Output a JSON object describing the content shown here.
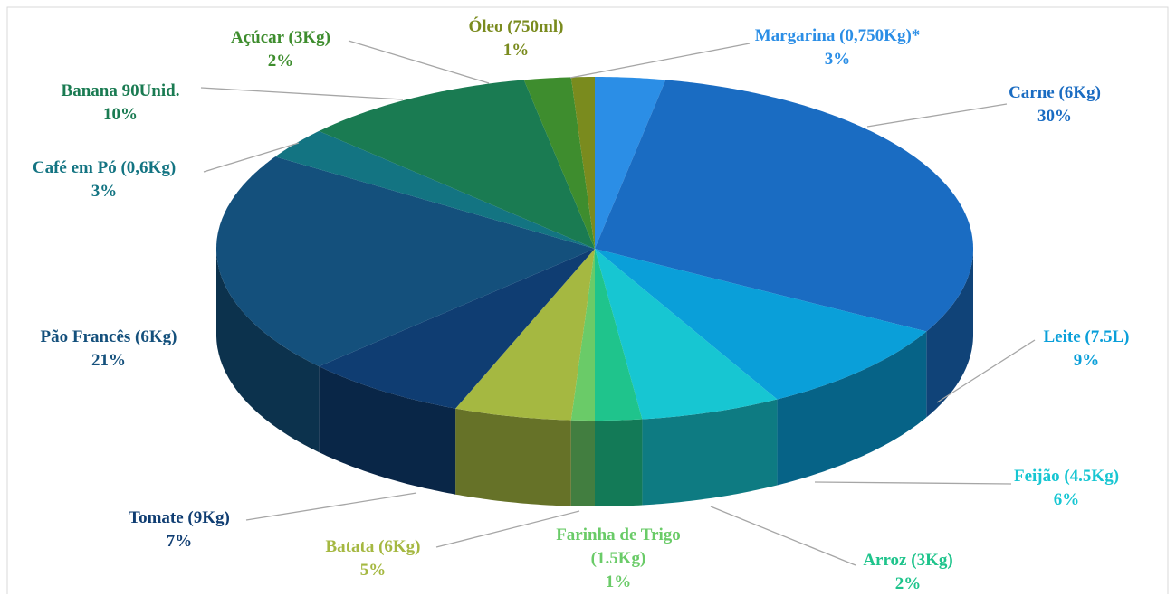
{
  "chart_data": {
    "type": "pie3d",
    "categories": [
      "Margarina (0,750Kg)*",
      "Carne (6Kg)",
      "Leite (7.5L)",
      "Feijão (4.5Kg)",
      "Arroz (3Kg)",
      "Farinha de Trigo (1.5Kg)",
      "Batata (6Kg)",
      "Tomate (9Kg)",
      "Pão Francês (6Kg)",
      "Café em Pó (0,6Kg)",
      "Banana 90Unid.",
      "Açúcar (3Kg)",
      "Óleo (750ml)"
    ],
    "values": [
      3,
      30,
      9,
      6,
      2,
      1,
      5,
      7,
      21,
      3,
      10,
      2,
      1
    ],
    "value_labels": [
      "3%",
      "30%",
      "9%",
      "6%",
      "2%",
      "1%",
      "5%",
      "7%",
      "21%",
      "3%",
      "10%",
      "2%",
      "1%"
    ],
    "colors": [
      "#2b8ee6",
      "#1a6cc2",
      "#0a9fd9",
      "#17c6d2",
      "#1fc48c",
      "#6acb68",
      "#a5b841",
      "#0f3d72",
      "#14507c",
      "#137482",
      "#1a7b52",
      "#3e8d2e",
      "#7a8b1e"
    ],
    "label_colors": [
      "#2b8ee6",
      "#1a6cc2",
      "#0a9fd9",
      "#17c6d2",
      "#1fc48c",
      "#6acb68",
      "#a5b841",
      "#0f3d72",
      "#14507c",
      "#137482",
      "#1a7b52",
      "#3e8d2e",
      "#7a8b1e"
    ]
  }
}
